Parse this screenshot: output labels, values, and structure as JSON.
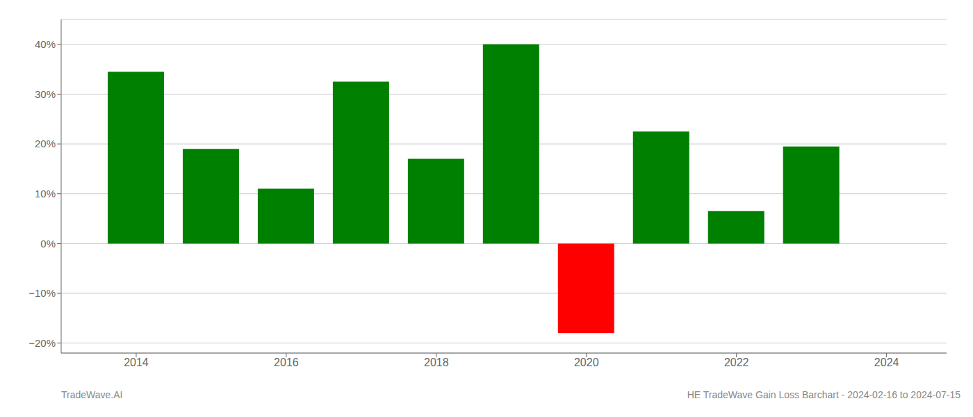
{
  "chart_data": {
    "type": "bar",
    "x": [
      2014,
      2015,
      2016,
      2017,
      2018,
      2019,
      2020,
      2021,
      2022,
      2023
    ],
    "values": [
      0.345,
      0.19,
      0.11,
      0.325,
      0.17,
      0.4,
      -0.18,
      0.225,
      0.065,
      0.195
    ],
    "colors": [
      "#008000",
      "#008000",
      "#008000",
      "#008000",
      "#008000",
      "#008000",
      "#ff0000",
      "#008000",
      "#008000",
      "#008000"
    ],
    "xlim": [
      2013.0,
      2024.8
    ],
    "xticks": [
      2014,
      2016,
      2018,
      2020,
      2022,
      2024
    ],
    "ylim": [
      -0.22,
      0.45
    ],
    "yticks": [
      {
        "value": -0.2,
        "label": "−20%"
      },
      {
        "value": -0.1,
        "label": "−10%"
      },
      {
        "value": 0.0,
        "label": "0%"
      },
      {
        "value": 0.1,
        "label": "10%"
      },
      {
        "value": 0.2,
        "label": "20%"
      },
      {
        "value": 0.3,
        "label": "30%"
      },
      {
        "value": 0.4,
        "label": "40%"
      }
    ],
    "grid": true,
    "annotations": [
      "TradeWave.AI",
      "HE TradeWave Gain Loss Barchart - 2024-02-16 to 2024-07-15"
    ]
  }
}
